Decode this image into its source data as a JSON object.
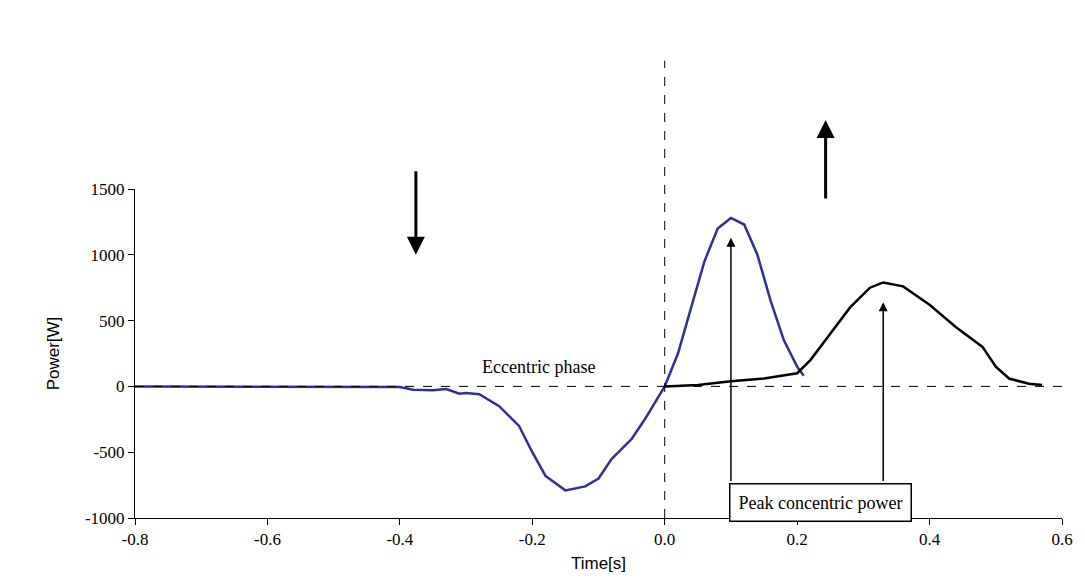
{
  "chart_data": {
    "type": "line",
    "xlabel": "Time[s]",
    "ylabel": "Power[W]",
    "xlim": [
      -0.8,
      0.6
    ],
    "xticks": [
      -0.8,
      -0.6,
      -0.4,
      -0.2,
      {
        "value": 0,
        "label": "0.0"
      },
      0.2,
      0.4,
      0.6
    ],
    "ylim": [
      -1000,
      1500
    ],
    "yticks": [
      -1000,
      -500,
      0,
      500,
      1000,
      1500
    ],
    "grid": false,
    "series": [
      {
        "color": "#2e3192",
        "x": [
          -0.8,
          -0.7,
          -0.6,
          -0.5,
          -0.42,
          -0.4,
          -0.38,
          -0.35,
          -0.33,
          -0.31,
          -0.3,
          -0.28,
          -0.25,
          -0.22,
          -0.2,
          -0.18,
          -0.15,
          -0.12,
          -0.1,
          -0.08,
          -0.05,
          -0.03,
          0.0,
          0.02,
          0.04,
          0.06,
          0.08,
          0.1,
          0.12,
          0.14,
          0.16,
          0.18,
          0.2,
          0.21
        ],
        "values": [
          0,
          0,
          0,
          0,
          0,
          -5,
          -25,
          -30,
          -20,
          -55,
          -50,
          -60,
          -150,
          -300,
          -500,
          -680,
          -790,
          -760,
          -700,
          -550,
          -400,
          -250,
          0,
          250,
          600,
          950,
          1200,
          1280,
          1230,
          1000,
          650,
          350,
          150,
          80
        ]
      },
      {
        "color": "#000000",
        "x": [
          0.0,
          0.05,
          0.1,
          0.15,
          0.2,
          0.22,
          0.25,
          0.28,
          0.31,
          0.33,
          0.36,
          0.4,
          0.44,
          0.48,
          0.5,
          0.52,
          0.55,
          0.57
        ],
        "values": [
          0,
          10,
          40,
          60,
          100,
          200,
          400,
          600,
          750,
          790,
          760,
          620,
          450,
          300,
          150,
          60,
          20,
          10
        ]
      }
    ],
    "annotations": [
      {
        "text": "Eccentric phase",
        "x": -0.19,
        "y": 150
      },
      {
        "text": "Peak concentric power",
        "x": 0.235,
        "y": -880
      }
    ],
    "reference_lines": [
      {
        "axis": "x",
        "value": 0
      },
      {
        "axis": "y",
        "value": 0
      }
    ]
  }
}
